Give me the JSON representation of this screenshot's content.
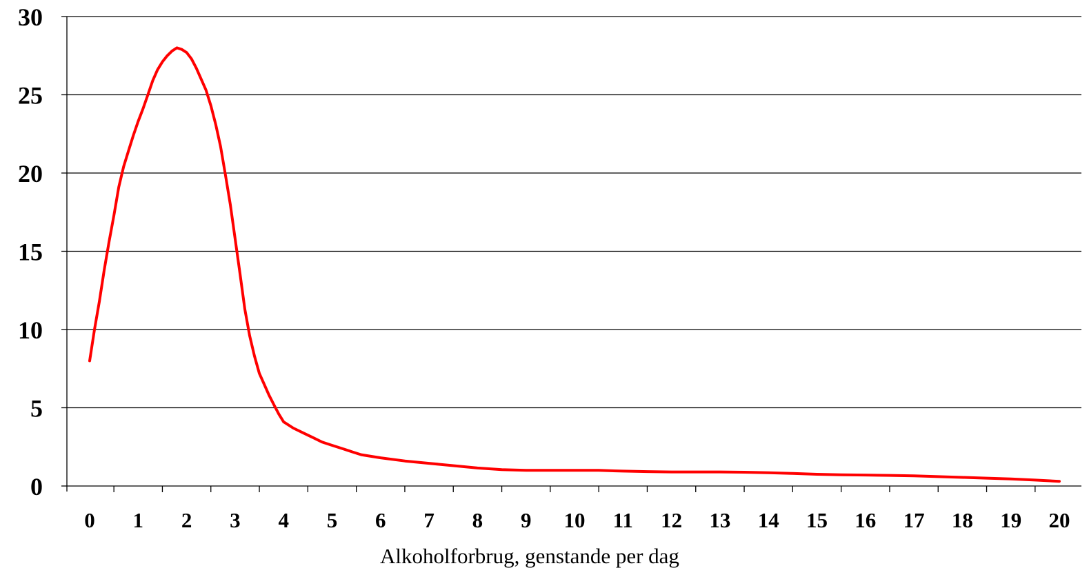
{
  "chart_data": {
    "type": "line",
    "title": "",
    "xlabel": "Alkoholforbrug, genstande per dag",
    "ylabel": "",
    "xlim": [
      0,
      20
    ],
    "ylim": [
      0,
      30
    ],
    "grid": true,
    "legend": "none",
    "x_ticks": [
      "0",
      "1",
      "2",
      "3",
      "4",
      "5",
      "6",
      "7",
      "8",
      "9",
      "10",
      "11",
      "12",
      "13",
      "14",
      "15",
      "16",
      "17",
      "18",
      "19",
      "20"
    ],
    "y_ticks": [
      "0",
      "5",
      "10",
      "15",
      "20",
      "25",
      "30"
    ],
    "series": [
      {
        "color": "#ff0000",
        "x": [
          0,
          0.1,
          0.2,
          0.3,
          0.4,
          0.5,
          0.6,
          0.7,
          0.8,
          0.9,
          1.0,
          1.1,
          1.2,
          1.3,
          1.4,
          1.5,
          1.6,
          1.7,
          1.8,
          1.9,
          2.0,
          2.1,
          2.2,
          2.3,
          2.4,
          2.5,
          2.6,
          2.7,
          2.8,
          2.9,
          3.0,
          3.1,
          3.2,
          3.3,
          3.4,
          3.5,
          3.6,
          3.7,
          3.8,
          3.9,
          4.0,
          4.2,
          4.4,
          4.6,
          4.8,
          5.0,
          5.2,
          5.4,
          5.6,
          5.8,
          6.0,
          6.5,
          7.0,
          7.5,
          8.0,
          8.5,
          9.0,
          9.5,
          10.0,
          10.5,
          11.0,
          11.5,
          12.0,
          12.5,
          13.0,
          13.5,
          14.0,
          14.5,
          15.0,
          15.5,
          16.0,
          16.5,
          17.0,
          17.5,
          18.0,
          18.5,
          19.0,
          19.5,
          20.0
        ],
        "y": [
          8.0,
          10.0,
          11.8,
          13.8,
          15.6,
          17.3,
          19.1,
          20.4,
          21.4,
          22.4,
          23.3,
          24.1,
          25.0,
          25.9,
          26.6,
          27.1,
          27.5,
          27.8,
          28.0,
          27.9,
          27.7,
          27.3,
          26.7,
          26.0,
          25.3,
          24.3,
          23.1,
          21.7,
          19.9,
          18.0,
          15.8,
          13.6,
          11.3,
          9.6,
          8.3,
          7.2,
          6.5,
          5.8,
          5.2,
          4.6,
          4.1,
          3.7,
          3.4,
          3.1,
          2.8,
          2.6,
          2.4,
          2.2,
          2.0,
          1.9,
          1.8,
          1.6,
          1.45,
          1.3,
          1.15,
          1.05,
          1.0,
          1.0,
          1.0,
          1.0,
          0.95,
          0.92,
          0.9,
          0.9,
          0.9,
          0.88,
          0.85,
          0.8,
          0.75,
          0.72,
          0.7,
          0.68,
          0.65,
          0.6,
          0.55,
          0.5,
          0.45,
          0.38,
          0.3
        ]
      }
    ]
  }
}
